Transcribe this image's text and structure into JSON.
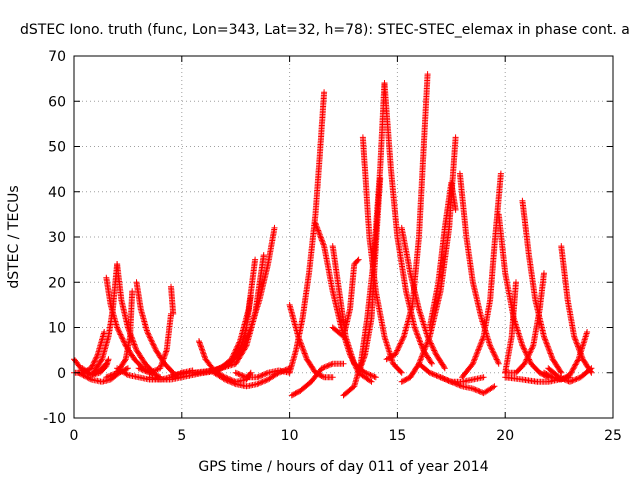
{
  "chart_data": {
    "type": "scatter",
    "title": "dSTEC Iono. truth (func, Lon=343, Lat=32, h=78): STEC-STEC_elemax in phase cont. a",
    "xlabel": "GPS time / hours of day 011 of year 2014",
    "ylabel": "dSTEC  / TECUs",
    "xlim": [
      0,
      25
    ],
    "ylim": [
      -10,
      70
    ],
    "x_ticks": [
      "0",
      "5",
      "10",
      "15",
      "20",
      "25"
    ],
    "y_ticks": [
      "-10",
      "0",
      "10",
      "20",
      "30",
      "40",
      "50",
      "60",
      "70"
    ],
    "grid": true,
    "marker": "+",
    "color": "#ff0000",
    "arcs": [
      {
        "x": [
          0.0,
          0.4,
          0.8,
          1.2,
          1.5
        ],
        "y": [
          3.0,
          0.5,
          -0.5,
          0.5,
          2.0
        ]
      },
      {
        "x": [
          0.0,
          0.4,
          0.8,
          1.1,
          1.4
        ],
        "y": [
          0.0,
          0.0,
          1.0,
          4.0,
          9.0
        ]
      },
      {
        "x": [
          0.4,
          0.8,
          1.2,
          1.5,
          1.6
        ],
        "y": [
          1.0,
          -0.5,
          0.0,
          1.5,
          3.0
        ]
      },
      {
        "x": [
          0.2,
          0.8,
          1.3,
          1.7,
          2.1,
          2.5
        ],
        "y": [
          0.0,
          -1.5,
          -2.0,
          -1.5,
          0.0,
          1.0
        ]
      },
      {
        "x": [
          1.5,
          1.7,
          2.0,
          2.4,
          2.8,
          3.2,
          3.6,
          4.0
        ],
        "y": [
          21.0,
          15.0,
          10.0,
          6.0,
          3.0,
          1.0,
          0.0,
          -1.0
        ]
      },
      {
        "x": [
          0.9,
          1.3,
          1.6,
          1.8,
          2.0
        ],
        "y": [
          0.0,
          3.0,
          8.0,
          14.0,
          24.0
        ]
      },
      {
        "x": [
          2.0,
          2.2,
          2.5,
          2.9,
          3.3,
          3.7
        ],
        "y": [
          24.0,
          16.0,
          10.0,
          5.0,
          2.0,
          0.0
        ]
      },
      {
        "x": [
          1.5,
          2.0,
          2.4,
          2.6,
          2.7
        ],
        "y": [
          -1.0,
          0.0,
          3.0,
          8.0,
          18.0
        ]
      },
      {
        "x": [
          2.9,
          3.1,
          3.4,
          3.8,
          4.2,
          4.6
        ],
        "y": [
          20.0,
          14.0,
          9.0,
          5.0,
          2.0,
          0.0
        ]
      },
      {
        "x": [
          3.0,
          3.5,
          4.0,
          4.3,
          4.5
        ],
        "y": [
          1.0,
          0.0,
          1.0,
          5.0,
          13.0
        ]
      },
      {
        "x": [
          4.5,
          4.6
        ],
        "y": [
          19.0,
          13.0
        ]
      },
      {
        "x": [
          2.0,
          2.5,
          3.0,
          3.5,
          4.0,
          4.5,
          5.0,
          5.5
        ],
        "y": [
          1.0,
          -0.5,
          -1.0,
          -1.5,
          -1.5,
          -1.0,
          0.0,
          0.5
        ]
      },
      {
        "x": [
          3.5,
          4.0,
          4.5,
          5.0,
          5.5,
          6.0,
          6.5
        ],
        "y": [
          -1.0,
          -1.5,
          -1.5,
          -1.0,
          -0.5,
          0.0,
          0.3
        ]
      },
      {
        "x": [
          5.8,
          6.1,
          6.5,
          7.0,
          7.5,
          8.0,
          8.2
        ],
        "y": [
          7.0,
          3.0,
          0.5,
          -1.0,
          -2.0,
          -1.5,
          0.0
        ]
      },
      {
        "x": [
          5.0,
          5.8,
          6.5,
          7.2,
          7.8,
          8.2,
          8.6,
          9.0,
          9.3
        ],
        "y": [
          0.0,
          0.0,
          0.5,
          2.0,
          5.0,
          10.0,
          16.0,
          24.0,
          32.0
        ]
      },
      {
        "x": [
          4.5,
          5.5,
          6.5,
          7.5,
          8.0,
          8.4,
          8.8
        ],
        "y": [
          -0.5,
          0.0,
          0.5,
          2.0,
          6.0,
          13.0,
          26.0
        ]
      },
      {
        "x": [
          6.0,
          6.8,
          7.3,
          7.7,
          8.1,
          8.4
        ],
        "y": [
          0.0,
          1.0,
          3.0,
          7.0,
          14.0,
          25.0
        ]
      },
      {
        "x": [
          6.5,
          7.2,
          7.7,
          8.0,
          8.2
        ],
        "y": [
          0.0,
          2.0,
          5.0,
          10.0,
          17.0
        ]
      },
      {
        "x": [
          6.5,
          7.0,
          7.5,
          8.0,
          8.5,
          9.0,
          9.5,
          10.0
        ],
        "y": [
          0.0,
          -1.5,
          -2.5,
          -3.0,
          -2.5,
          -1.5,
          0.0,
          1.0
        ]
      },
      {
        "x": [
          7.5,
          8.0,
          8.5,
          9.0,
          9.5,
          10.0
        ],
        "y": [
          0.0,
          -1.0,
          -1.0,
          0.0,
          0.5,
          0.0
        ]
      },
      {
        "x": [
          10.0,
          10.3,
          10.6,
          10.9,
          11.2,
          11.4,
          11.6
        ],
        "y": [
          0.0,
          5.0,
          12.0,
          22.0,
          35.0,
          48.0,
          62.0
        ]
      },
      {
        "x": [
          10.1,
          10.5,
          11.0,
          11.5,
          12.0,
          12.5
        ],
        "y": [
          -5.0,
          -4.0,
          -2.0,
          1.0,
          2.0,
          2.0
        ]
      },
      {
        "x": [
          10.0,
          10.4,
          10.8,
          11.2,
          11.6,
          12.0
        ],
        "y": [
          15.0,
          8.0,
          3.0,
          0.0,
          -1.0,
          -1.0
        ]
      },
      {
        "x": [
          11.2,
          11.6,
          12.0,
          12.4,
          12.8,
          13.2,
          13.8
        ],
        "y": [
          33.0,
          28.0,
          18.0,
          10.0,
          4.0,
          0.0,
          -2.0
        ]
      },
      {
        "x": [
          12.0,
          12.3,
          12.6,
          13.0,
          13.5,
          14.0
        ],
        "y": [
          28.0,
          18.0,
          8.0,
          2.0,
          0.0,
          -1.0
        ]
      },
      {
        "x": [
          12.5,
          13.0,
          13.3,
          13.6,
          13.9,
          14.2,
          14.4
        ],
        "y": [
          -5.0,
          -3.0,
          2.0,
          12.0,
          25.0,
          45.0,
          64.0
        ]
      },
      {
        "x": [
          12.0,
          12.5,
          12.8,
          13.0,
          13.2
        ],
        "y": [
          10.0,
          8.0,
          14.0,
          24.0,
          25.0
        ]
      },
      {
        "x": [
          13.4,
          13.7,
          14.0,
          14.4,
          14.8,
          15.2
        ],
        "y": [
          52.0,
          30.0,
          18.0,
          8.0,
          2.0,
          0.0
        ]
      },
      {
        "x": [
          13.2,
          13.5,
          13.8,
          14.0,
          14.2
        ],
        "y": [
          0.0,
          4.0,
          12.0,
          28.0,
          43.0
        ]
      },
      {
        "x": [
          14.4,
          14.7,
          15.0,
          15.4,
          15.8,
          16.2,
          16.6
        ],
        "y": [
          64.0,
          45.0,
          30.0,
          18.0,
          10.0,
          5.0,
          2.0
        ]
      },
      {
        "x": [
          14.5,
          14.9,
          15.3,
          15.7,
          16.0,
          16.2,
          16.4
        ],
        "y": [
          3.0,
          4.0,
          8.0,
          15.0,
          30.0,
          48.0,
          66.0
        ]
      },
      {
        "x": [
          15.2,
          15.6,
          16.0,
          16.4,
          16.8,
          17.2
        ],
        "y": [
          32.0,
          22.0,
          14.0,
          8.0,
          4.0,
          1.0
        ]
      },
      {
        "x": [
          15.2,
          15.6,
          16.0,
          16.5,
          17.0,
          17.4,
          17.7
        ],
        "y": [
          -2.0,
          -1.0,
          2.0,
          8.0,
          18.0,
          32.0,
          52.0
        ]
      },
      {
        "x": [
          16.5,
          16.9,
          17.2,
          17.5,
          17.7
        ],
        "y": [
          10.0,
          20.0,
          32.0,
          42.0,
          36.0
        ]
      },
      {
        "x": [
          17.9,
          18.2,
          18.5,
          18.9,
          19.3,
          19.7
        ],
        "y": [
          44.0,
          30.0,
          20.0,
          12.0,
          6.0,
          2.0
        ]
      },
      {
        "x": [
          18.0,
          18.5,
          19.0,
          19.3,
          19.5,
          19.8
        ],
        "y": [
          -1.0,
          2.0,
          8.0,
          16.0,
          28.0,
          44.0
        ]
      },
      {
        "x": [
          16.0,
          16.5,
          17.0,
          17.5,
          18.0,
          18.5,
          19.0
        ],
        "y": [
          2.0,
          0.0,
          -1.0,
          -2.0,
          -2.0,
          -1.5,
          -1.0
        ]
      },
      {
        "x": [
          17.0,
          17.5,
          18.0,
          18.5,
          19.0,
          19.5
        ],
        "y": [
          -1.0,
          -2.0,
          -3.0,
          -3.5,
          -4.5,
          -3.0
        ]
      },
      {
        "x": [
          19.7,
          20.0,
          20.4,
          20.8,
          21.2,
          21.6,
          22.0
        ],
        "y": [
          35.0,
          22.0,
          12.0,
          6.0,
          2.0,
          0.0,
          -1.0
        ]
      },
      {
        "x": [
          20.0,
          20.3,
          20.5
        ],
        "y": [
          0.0,
          8.0,
          20.0
        ]
      },
      {
        "x": [
          20.8,
          21.1,
          21.4,
          21.8,
          22.2,
          22.6
        ],
        "y": [
          38.0,
          26.0,
          16.0,
          8.0,
          3.0,
          0.0
        ]
      },
      {
        "x": [
          20.0,
          20.5,
          20.9,
          21.3,
          21.6,
          21.8
        ],
        "y": [
          0.0,
          0.0,
          2.0,
          6.0,
          14.0,
          22.0
        ]
      },
      {
        "x": [
          22.6,
          22.9,
          23.2,
          23.6,
          24.0
        ],
        "y": [
          28.0,
          16.0,
          8.0,
          3.0,
          0.0
        ]
      },
      {
        "x": [
          21.8,
          22.2,
          22.6,
          23.0,
          23.4,
          23.8
        ],
        "y": [
          0.0,
          -1.0,
          -1.5,
          -0.5,
          3.0,
          9.0
        ]
      },
      {
        "x": [
          20.0,
          20.8,
          21.5,
          22.0,
          22.5,
          23.0
        ],
        "y": [
          -1.0,
          -1.5,
          -2.0,
          -2.0,
          -1.5,
          -1.0
        ]
      },
      {
        "x": [
          22.0,
          22.5,
          23.0,
          23.5,
          24.0
        ],
        "y": [
          1.0,
          -1.0,
          -2.0,
          -1.0,
          1.0
        ]
      }
    ]
  }
}
